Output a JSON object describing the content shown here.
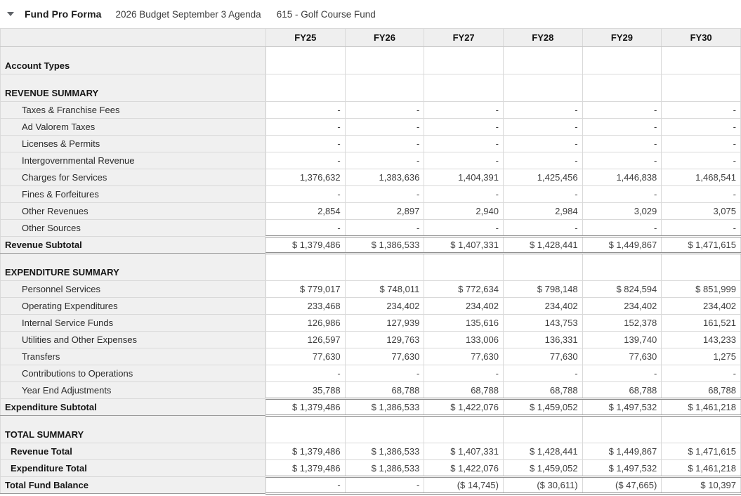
{
  "header": {
    "collapse_icon": "triangle-down-icon",
    "title": "Fund Pro Forma",
    "budget": "2026 Budget September 3 Agenda",
    "fund": "615 - Golf Course Fund"
  },
  "colors": {
    "header_bg": "#efefef",
    "label_column_bg": "#f0f0f0",
    "grid_border": "#d9d9d9",
    "emphasis_border": "#8f8f8f",
    "value_text": "#3f3f3f",
    "label_text": "#2b2b2b"
  },
  "table": {
    "columns": [
      "FY25",
      "FY26",
      "FY27",
      "FY28",
      "FY29",
      "FY30"
    ],
    "rows": [
      {
        "label": "Account Types",
        "type": "section",
        "values": [
          "",
          "",
          "",
          "",
          "",
          ""
        ]
      },
      {
        "label": "REVENUE SUMMARY",
        "type": "section",
        "values": [
          "",
          "",
          "",
          "",
          "",
          ""
        ]
      },
      {
        "label": "Taxes & Franchise Fees",
        "type": "item",
        "values": [
          "-",
          "-",
          "-",
          "-",
          "-",
          "-"
        ]
      },
      {
        "label": "Ad Valorem Taxes",
        "type": "item",
        "values": [
          "-",
          "-",
          "-",
          "-",
          "-",
          "-"
        ]
      },
      {
        "label": "Licenses & Permits",
        "type": "item",
        "values": [
          "-",
          "-",
          "-",
          "-",
          "-",
          "-"
        ]
      },
      {
        "label": "Intergovernmental Revenue",
        "type": "item",
        "values": [
          "-",
          "-",
          "-",
          "-",
          "-",
          "-"
        ]
      },
      {
        "label": "Charges for Services",
        "type": "item",
        "values": [
          "1,376,632",
          "1,383,636",
          "1,404,391",
          "1,425,456",
          "1,446,838",
          "1,468,541"
        ]
      },
      {
        "label": "Fines & Forfeitures",
        "type": "item",
        "values": [
          "-",
          "-",
          "-",
          "-",
          "-",
          "-"
        ]
      },
      {
        "label": "Other Revenues",
        "type": "item",
        "values": [
          "2,854",
          "2,897",
          "2,940",
          "2,984",
          "3,029",
          "3,075"
        ]
      },
      {
        "label": "Other Sources",
        "type": "item",
        "values": [
          "-",
          "-",
          "-",
          "-",
          "-",
          "-"
        ]
      },
      {
        "label": "Revenue Subtotal",
        "type": "subtotal",
        "values": [
          "$ 1,379,486",
          "$ 1,386,533",
          "$ 1,407,331",
          "$ 1,428,441",
          "$ 1,449,867",
          "$ 1,471,615"
        ]
      },
      {
        "label": "EXPENDITURE SUMMARY",
        "type": "section",
        "values": [
          "",
          "",
          "",
          "",
          "",
          ""
        ]
      },
      {
        "label": "Personnel Services",
        "type": "item",
        "values": [
          "$ 779,017",
          "$ 748,011",
          "$ 772,634",
          "$ 798,148",
          "$ 824,594",
          "$ 851,999"
        ]
      },
      {
        "label": "Operating Expenditures",
        "type": "item",
        "values": [
          "233,468",
          "234,402",
          "234,402",
          "234,402",
          "234,402",
          "234,402"
        ]
      },
      {
        "label": "Internal Service Funds",
        "type": "item",
        "values": [
          "126,986",
          "127,939",
          "135,616",
          "143,753",
          "152,378",
          "161,521"
        ]
      },
      {
        "label": "Utilities and Other Expenses",
        "type": "item",
        "values": [
          "126,597",
          "129,763",
          "133,006",
          "136,331",
          "139,740",
          "143,233"
        ]
      },
      {
        "label": "Transfers",
        "type": "item",
        "values": [
          "77,630",
          "77,630",
          "77,630",
          "77,630",
          "77,630",
          "1,275"
        ]
      },
      {
        "label": "Contributions to Operations",
        "type": "item",
        "values": [
          "-",
          "-",
          "-",
          "-",
          "-",
          "-"
        ]
      },
      {
        "label": "Year End Adjustments",
        "type": "item",
        "values": [
          "35,788",
          "68,788",
          "68,788",
          "68,788",
          "68,788",
          "68,788"
        ]
      },
      {
        "label": "Expenditure Subtotal",
        "type": "subtotal",
        "values": [
          "$ 1,379,486",
          "$ 1,386,533",
          "$ 1,422,076",
          "$ 1,459,052",
          "$ 1,497,532",
          "$ 1,461,218"
        ]
      },
      {
        "label": "TOTAL SUMMARY",
        "type": "section",
        "values": [
          "",
          "",
          "",
          "",
          "",
          ""
        ]
      },
      {
        "label": "Revenue Total",
        "type": "total",
        "values": [
          "$ 1,379,486",
          "$ 1,386,533",
          "$ 1,407,331",
          "$ 1,428,441",
          "$ 1,449,867",
          "$ 1,471,615"
        ]
      },
      {
        "label": "Expenditure Total",
        "type": "total",
        "values": [
          "$ 1,379,486",
          "$ 1,386,533",
          "$ 1,422,076",
          "$ 1,459,052",
          "$ 1,497,532",
          "$ 1,461,218"
        ]
      },
      {
        "label": "Total Fund Balance",
        "type": "grandtotal",
        "values": [
          "-",
          "-",
          "($ 14,745)",
          "($ 30,611)",
          "($ 47,665)",
          "$ 10,397"
        ]
      }
    ]
  }
}
